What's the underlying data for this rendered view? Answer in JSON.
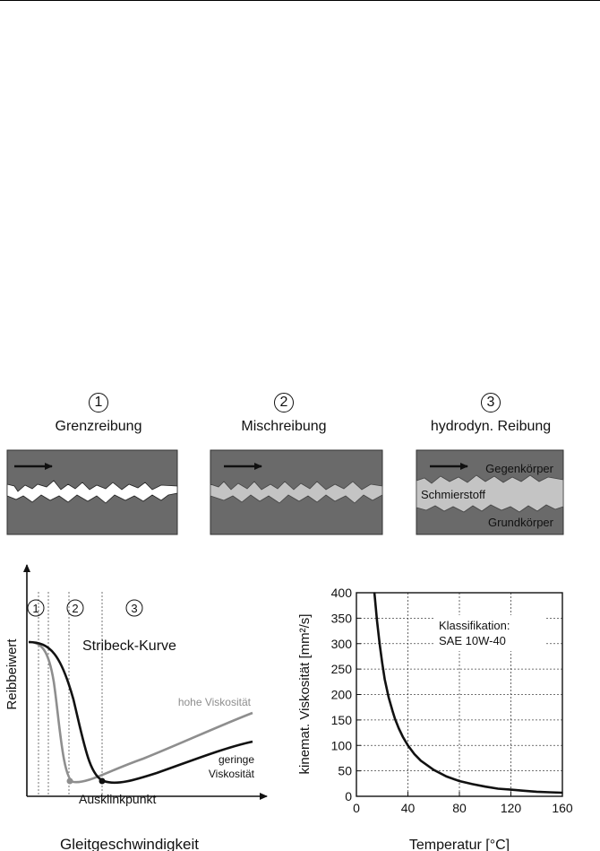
{
  "regimes": [
    {
      "number": "1",
      "label": "Grenzreibung"
    },
    {
      "number": "2",
      "label": "Mischreibung"
    },
    {
      "number": "3",
      "label": "hydrodyn. Reibung"
    }
  ],
  "panel3": {
    "counter_body": "Gegenkörper",
    "lubricant": "Schmierstoff",
    "base_body": "Grundkörper"
  },
  "stribeck": {
    "title": "Stribeck-Kurve",
    "xlabel": "Gleitgeschwindigkeit",
    "ylabel": "Reibbeiwert",
    "zone_numbers": [
      "1",
      "2",
      "3"
    ],
    "high_viscosity": "hohe Viskosität",
    "low_viscosity_line1": "geringe",
    "low_viscosity_line2": "Viskosität",
    "breakaway_point": "Ausklinkpunkt"
  },
  "chart_data": {
    "type": "line",
    "xlabel": "Temperatur [°C]",
    "ylabel": "kinemat. Viskosität [mm²/s]",
    "xlim": [
      0,
      160
    ],
    "ylim": [
      0,
      400
    ],
    "xticks": [
      0,
      40,
      80,
      120,
      160
    ],
    "yticks": [
      0,
      50,
      100,
      150,
      200,
      250,
      300,
      350,
      400
    ],
    "grid": true,
    "annotation_line1": "Klassifikation:",
    "annotation_line2": "SAE 10W-40",
    "x": [
      14,
      16,
      18,
      20,
      22,
      25,
      28,
      30,
      33,
      36,
      40,
      45,
      50,
      60,
      70,
      80,
      90,
      100,
      110,
      120,
      130,
      140,
      150,
      160
    ],
    "values": [
      400,
      345,
      300,
      262,
      230,
      195,
      168,
      152,
      133,
      117,
      100,
      83,
      70,
      52,
      39,
      30,
      24,
      19,
      15,
      13,
      11,
      9,
      8,
      7
    ]
  }
}
